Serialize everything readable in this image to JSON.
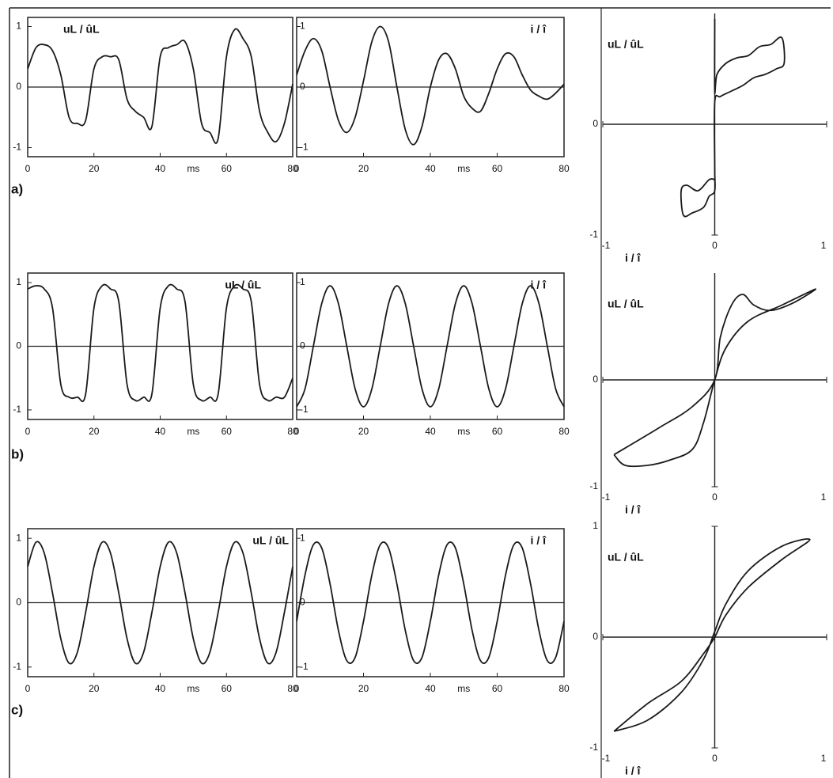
{
  "panel_labels": [
    "a)",
    "b)",
    "c)"
  ],
  "chart_data": [
    {
      "type": "line",
      "ylabel": "uL / ûL",
      "xlabel": "ms",
      "color": "#1a1a1a",
      "x": [
        0,
        2.5,
        5,
        7.5,
        10,
        12.5,
        15,
        17.5,
        20,
        22.5,
        25,
        27.5,
        30,
        32.5,
        35,
        37.5,
        40,
        42.5,
        45,
        47.5,
        50,
        52.5,
        55,
        57.5,
        60,
        62.5,
        65,
        67.5,
        70,
        72.5,
        75,
        77.5,
        80
      ],
      "values": [
        0.3,
        0.65,
        0.7,
        0.6,
        0.2,
        -0.5,
        -0.6,
        -0.55,
        0.3,
        0.5,
        0.5,
        0.45,
        -0.2,
        -0.4,
        -0.5,
        -0.65,
        0.5,
        0.65,
        0.7,
        0.75,
        0.3,
        -0.6,
        -0.75,
        -0.85,
        0.5,
        0.95,
        0.8,
        0.5,
        -0.4,
        -0.75,
        -0.9,
        -0.6,
        0.05
      ],
      "xlim": [
        0,
        80
      ],
      "ylim": [
        -1.15,
        1.15
      ],
      "xticks": [
        0,
        20,
        40,
        60,
        80
      ],
      "yticks": [
        -1,
        0,
        1
      ]
    },
    {
      "type": "line",
      "ylabel": "i / î",
      "xlabel": "ms",
      "color": "#1a1a1a",
      "x": [
        0,
        2.5,
        5,
        7.5,
        10,
        12.5,
        15,
        17.5,
        20,
        22.5,
        25,
        27.5,
        30,
        32.5,
        35,
        37.5,
        40,
        42.5,
        45,
        47.5,
        50,
        52.5,
        55,
        57.5,
        60,
        62.5,
        65,
        67.5,
        70,
        72.5,
        75,
        77.5,
        80
      ],
      "values": [
        0.2,
        0.6,
        0.8,
        0.6,
        0.0,
        -0.55,
        -0.75,
        -0.5,
        0.1,
        0.75,
        1.0,
        0.75,
        0.0,
        -0.7,
        -0.95,
        -0.65,
        0.0,
        0.45,
        0.55,
        0.3,
        -0.15,
        -0.35,
        -0.4,
        -0.1,
        0.3,
        0.55,
        0.5,
        0.2,
        -0.05,
        -0.15,
        -0.2,
        -0.1,
        0.05
      ],
      "xlim": [
        0,
        80
      ],
      "ylim": [
        -1.15,
        1.15
      ],
      "xticks": [
        0,
        20,
        40,
        60,
        80
      ],
      "yticks": [
        -1,
        0,
        1
      ]
    },
    {
      "type": "line",
      "ylabel": "uL / ûL",
      "xlabel": "i / î",
      "color": "#1a1a1a",
      "x": [
        0.0,
        0.0,
        0.02,
        0.1,
        0.2,
        0.3,
        0.4,
        0.5,
        0.6,
        0.62,
        0.55,
        0.45,
        0.35,
        0.25,
        0.15,
        0.05,
        0.0,
        0.0,
        0.0,
        -0.05,
        -0.1,
        -0.2,
        -0.28,
        -0.3,
        -0.25,
        -0.15,
        -0.05,
        0.0
      ],
      "values": [
        0.95,
        0.3,
        0.45,
        0.55,
        0.6,
        0.62,
        0.7,
        0.72,
        0.78,
        0.55,
        0.5,
        0.45,
        0.42,
        0.35,
        0.3,
        0.25,
        0.2,
        -0.4,
        -0.6,
        -0.65,
        -0.75,
        -0.8,
        -0.82,
        -0.6,
        -0.55,
        -0.6,
        -0.5,
        -0.5
      ],
      "xlim": [
        -1,
        1
      ],
      "ylim": [
        -1,
        1
      ],
      "xticks": [
        -1,
        0,
        1
      ],
      "yticks": [
        -1,
        0
      ]
    },
    {
      "type": "line",
      "ylabel": "uL / ûL",
      "xlabel": "ms",
      "color": "#1a1a1a",
      "x": [
        0,
        2.5,
        5,
        7.5,
        10,
        12.5,
        15,
        17.5,
        20,
        22.5,
        25,
        27.5,
        30,
        32.5,
        35,
        37.5,
        40,
        42.5,
        45,
        47.5,
        50,
        52.5,
        55,
        57.5,
        60,
        62.5,
        65,
        67.5,
        70,
        72.5,
        75,
        77.5,
        80
      ],
      "values": [
        0.9,
        0.95,
        0.9,
        0.6,
        -0.6,
        -0.8,
        -0.8,
        -0.75,
        0.6,
        0.95,
        0.9,
        0.7,
        -0.6,
        -0.85,
        -0.8,
        -0.75,
        0.6,
        0.95,
        0.9,
        0.7,
        -0.6,
        -0.85,
        -0.8,
        -0.75,
        0.6,
        0.95,
        0.9,
        0.7,
        -0.6,
        -0.85,
        -0.8,
        -0.8,
        -0.5
      ],
      "xlim": [
        0,
        80
      ],
      "ylim": [
        -1.15,
        1.15
      ],
      "xticks": [
        0,
        20,
        40,
        60,
        80
      ],
      "yticks": [
        -1,
        0,
        1
      ]
    },
    {
      "type": "line",
      "ylabel": "i / î",
      "xlabel": "ms",
      "color": "#1a1a1a",
      "x": [
        0,
        2.5,
        5,
        7.5,
        10,
        12.5,
        15,
        17.5,
        20,
        22.5,
        25,
        27.5,
        30,
        32.5,
        35,
        37.5,
        40,
        42.5,
        45,
        47.5,
        50,
        52.5,
        55,
        57.5,
        60,
        62.5,
        65,
        67.5,
        70,
        72.5,
        75,
        77.5,
        80
      ],
      "values": [
        -0.95,
        -0.67,
        0,
        0.67,
        0.95,
        0.67,
        0,
        -0.67,
        -0.95,
        -0.67,
        0,
        0.67,
        0.95,
        0.67,
        0,
        -0.67,
        -0.95,
        -0.67,
        0,
        0.67,
        0.95,
        0.67,
        0,
        -0.67,
        -0.95,
        -0.67,
        0,
        0.67,
        0.95,
        0.67,
        0,
        -0.67,
        -0.95
      ],
      "xlim": [
        0,
        80
      ],
      "ylim": [
        -1.15,
        1.15
      ],
      "xticks": [
        0,
        20,
        40,
        60,
        80
      ],
      "yticks": [
        -1,
        0,
        1
      ]
    },
    {
      "type": "line",
      "ylabel": "uL / ûL",
      "xlabel": "i / î",
      "color": "#1a1a1a",
      "x": [
        -0.9,
        -0.5,
        -0.2,
        0.0,
        0.05,
        0.15,
        0.25,
        0.35,
        0.5,
        0.7,
        0.9,
        0.6,
        0.3,
        0.1,
        0.0,
        -0.1,
        -0.2,
        -0.4,
        -0.6,
        -0.8,
        -0.9
      ],
      "values": [
        -0.7,
        -0.45,
        -0.25,
        0.0,
        0.4,
        0.7,
        0.8,
        0.7,
        0.65,
        0.72,
        0.85,
        0.7,
        0.55,
        0.3,
        0.0,
        -0.4,
        -0.65,
        -0.75,
        -0.8,
        -0.8,
        -0.7
      ],
      "xlim": [
        -1,
        1
      ],
      "ylim": [
        -1,
        1
      ],
      "xticks": [
        -1,
        0,
        1
      ],
      "yticks": [
        -1,
        0
      ]
    },
    {
      "type": "line",
      "ylabel": "uL / ûL",
      "xlabel": "ms",
      "color": "#1a1a1a",
      "x": [
        0,
        2.5,
        5,
        7.5,
        10,
        12.5,
        15,
        17.5,
        20,
        22.5,
        25,
        27.5,
        30,
        32.5,
        35,
        37.5,
        40,
        42.5,
        45,
        47.5,
        50,
        52.5,
        55,
        57.5,
        60,
        62.5,
        65,
        67.5,
        70,
        72.5,
        75,
        77.5,
        80
      ],
      "values": [
        0.56,
        0.94,
        0.77,
        0.15,
        -0.56,
        -0.94,
        -0.77,
        -0.15,
        0.56,
        0.94,
        0.77,
        0.15,
        -0.56,
        -0.94,
        -0.77,
        -0.15,
        0.56,
        0.94,
        0.77,
        0.15,
        -0.56,
        -0.94,
        -0.77,
        -0.15,
        0.56,
        0.94,
        0.77,
        0.15,
        -0.56,
        -0.94,
        -0.77,
        -0.15,
        0.56
      ],
      "xlim": [
        0,
        80
      ],
      "ylim": [
        -1.15,
        1.15
      ],
      "xticks": [
        0,
        20,
        40,
        60,
        80
      ],
      "yticks": [
        -1,
        0,
        1
      ]
    },
    {
      "type": "line",
      "ylabel": "i / î",
      "xlabel": "ms",
      "color": "#1a1a1a",
      "x": [
        0,
        2.5,
        5,
        7.5,
        10,
        12.5,
        15,
        17.5,
        20,
        22.5,
        25,
        27.5,
        30,
        32.5,
        35,
        37.5,
        40,
        42.5,
        45,
        47.5,
        50,
        52.5,
        55,
        57.5,
        60,
        62.5,
        65,
        67.5,
        70,
        72.5,
        75,
        77.5,
        80
      ],
      "values": [
        -0.29,
        0.43,
        0.9,
        0.85,
        0.29,
        -0.43,
        -0.9,
        -0.85,
        -0.29,
        0.43,
        0.9,
        0.85,
        0.29,
        -0.43,
        -0.9,
        -0.85,
        -0.29,
        0.43,
        0.9,
        0.85,
        0.29,
        -0.43,
        -0.9,
        -0.85,
        -0.29,
        0.43,
        0.9,
        0.85,
        0.29,
        -0.43,
        -0.9,
        -0.85,
        -0.29
      ],
      "xlim": [
        0,
        80
      ],
      "ylim": [
        -1.15,
        1.15
      ],
      "xticks": [
        0,
        20,
        40,
        60,
        80
      ],
      "yticks": [
        -1,
        0,
        1
      ]
    },
    {
      "type": "line",
      "ylabel": "uL / ûL",
      "xlabel": "i / î",
      "color": "#1a1a1a",
      "x": [
        -0.9,
        -0.6,
        -0.3,
        -0.1,
        0.0,
        0.1,
        0.3,
        0.6,
        0.85,
        0.6,
        0.3,
        0.1,
        0.0,
        -0.1,
        -0.3,
        -0.6,
        -0.9
      ],
      "values": [
        -0.85,
        -0.6,
        -0.4,
        -0.15,
        0.0,
        0.2,
        0.45,
        0.7,
        0.88,
        0.82,
        0.6,
        0.3,
        0.05,
        -0.2,
        -0.5,
        -0.75,
        -0.85
      ],
      "xlim": [
        -1,
        1
      ],
      "ylim": [
        -1,
        1
      ],
      "xticks": [
        -1,
        0,
        1
      ],
      "yticks": [
        -1,
        0,
        1
      ]
    }
  ]
}
